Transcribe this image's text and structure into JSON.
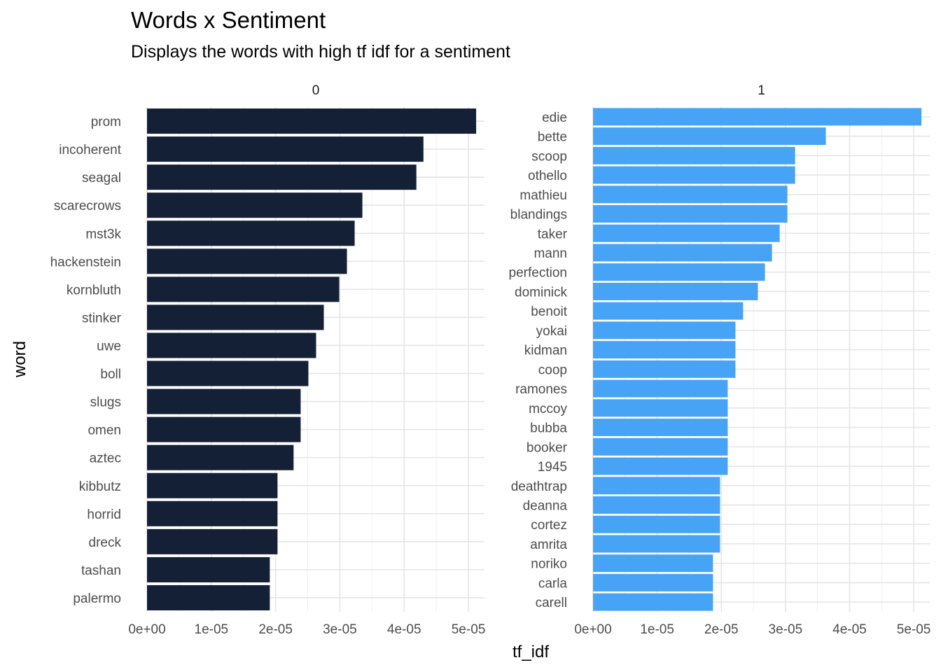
{
  "chart_data": {
    "type": "bar",
    "orientation": "horizontal",
    "title": "Words x Sentiment",
    "subtitle": "Displays the words with high tf idf for a sentiment",
    "xlabel": "tf_idf",
    "ylabel": "word",
    "xlim": [
      0,
      5.25e-05
    ],
    "x_ticks": [
      "0e+00",
      "1e-05",
      "2e-05",
      "3e-05",
      "4e-05",
      "5e-05"
    ],
    "x_tick_values": [
      0,
      1e-05,
      2e-05,
      3e-05,
      4e-05,
      5e-05
    ],
    "grid": true,
    "legend": "none",
    "facets": [
      {
        "label": "0",
        "color": "#132035",
        "categories": [
          "prom",
          "incoherent",
          "seagal",
          "scarecrows",
          "mst3k",
          "hackenstein",
          "kornbluth",
          "stinker",
          "uwe",
          "boll",
          "slugs",
          "omen",
          "aztec",
          "kibbutz",
          "horrid",
          "dreck",
          "tashan",
          "palermo"
        ],
        "values": [
          5.12e-05,
          4.3e-05,
          4.19e-05,
          3.35e-05,
          3.23e-05,
          3.11e-05,
          2.99e-05,
          2.75e-05,
          2.63e-05,
          2.51e-05,
          2.39e-05,
          2.39e-05,
          2.28e-05,
          2.03e-05,
          2.03e-05,
          2.03e-05,
          1.91e-05,
          1.91e-05
        ]
      },
      {
        "label": "1",
        "color": "#47a3f5",
        "categories": [
          "edie",
          "bette",
          "scoop",
          "othello",
          "mathieu",
          "blandings",
          "taker",
          "mann",
          "perfection",
          "dominick",
          "benoit",
          "yokai",
          "kidman",
          "coop",
          "ramones",
          "mccoy",
          "bubba",
          "booker",
          "1945",
          "deathtrap",
          "deanna",
          "cortez",
          "amrita",
          "noriko",
          "carla",
          "carell"
        ],
        "values": [
          5.12e-05,
          3.63e-05,
          3.15e-05,
          3.15e-05,
          3.03e-05,
          3.03e-05,
          2.91e-05,
          2.79e-05,
          2.68e-05,
          2.57e-05,
          2.34e-05,
          2.22e-05,
          2.22e-05,
          2.22e-05,
          2.1e-05,
          2.1e-05,
          2.1e-05,
          2.1e-05,
          2.1e-05,
          1.98e-05,
          1.98e-05,
          1.98e-05,
          1.98e-05,
          1.87e-05,
          1.87e-05,
          1.87e-05
        ]
      }
    ]
  }
}
